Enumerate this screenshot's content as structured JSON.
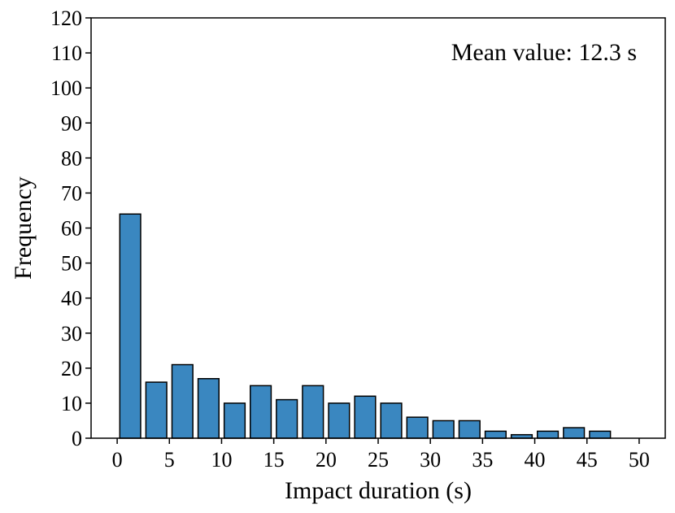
{
  "chart_data": {
    "type": "bar",
    "title": "",
    "xlabel": "Impact duration (s)",
    "ylabel": "Frequency",
    "annotation": "Mean value: 12.3 s",
    "legend": "none",
    "grid": false,
    "xlim": [
      -2.5,
      52.5
    ],
    "ylim": [
      0,
      120
    ],
    "bin_width": 2.5,
    "x_ticks": [
      "0",
      "5",
      "10",
      "15",
      "20",
      "25",
      "30",
      "35",
      "40",
      "45",
      "50"
    ],
    "y_ticks": [
      "0",
      "10",
      "20",
      "30",
      "40",
      "50",
      "60",
      "70",
      "80",
      "90",
      "100",
      "110",
      "120"
    ],
    "bar_color": "#3a87c0",
    "edge_color": "#000000",
    "bins": [
      {
        "start": 0.0,
        "end": 2.5,
        "value": 64
      },
      {
        "start": 2.5,
        "end": 5.0,
        "value": 16
      },
      {
        "start": 5.0,
        "end": 7.5,
        "value": 21
      },
      {
        "start": 7.5,
        "end": 10.0,
        "value": 17
      },
      {
        "start": 10.0,
        "end": 12.5,
        "value": 10
      },
      {
        "start": 12.5,
        "end": 15.0,
        "value": 15
      },
      {
        "start": 15.0,
        "end": 17.5,
        "value": 11
      },
      {
        "start": 17.5,
        "end": 20.0,
        "value": 15
      },
      {
        "start": 20.0,
        "end": 22.5,
        "value": 10
      },
      {
        "start": 22.5,
        "end": 25.0,
        "value": 12
      },
      {
        "start": 25.0,
        "end": 27.5,
        "value": 10
      },
      {
        "start": 27.5,
        "end": 30.0,
        "value": 6
      },
      {
        "start": 30.0,
        "end": 32.5,
        "value": 5
      },
      {
        "start": 32.5,
        "end": 35.0,
        "value": 5
      },
      {
        "start": 35.0,
        "end": 37.5,
        "value": 2
      },
      {
        "start": 37.5,
        "end": 40.0,
        "value": 1
      },
      {
        "start": 40.0,
        "end": 42.5,
        "value": 2
      },
      {
        "start": 42.5,
        "end": 45.0,
        "value": 3
      },
      {
        "start": 45.0,
        "end": 47.5,
        "value": 2
      },
      {
        "start": 47.5,
        "end": 50.0,
        "value": 0
      }
    ]
  }
}
